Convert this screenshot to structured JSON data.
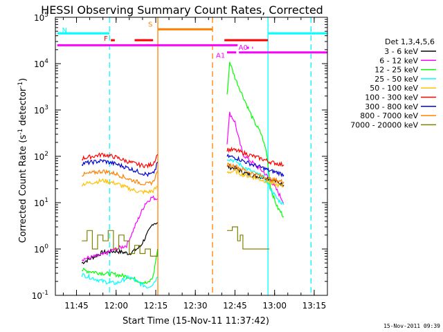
{
  "chart_data": {
    "type": "line",
    "title": "HESSI Observing Summary Count Rates, Corrected",
    "xlabel": "Start Time (15-Nov-11 11:37:42)",
    "ylabel": "Corrected Count Rate (s⁻¹ detector⁻¹)",
    "ylabel_main": "Corrected Count Rate (s",
    "ylabel_sup1": "-1",
    "ylabel_mid": " detector",
    "ylabel_sup2": "-1",
    "ylabel_end": ")",
    "y_scale": "log",
    "xlim": [
      "11:37:42",
      "13:20:00"
    ],
    "ylim": [
      0.1,
      100000
    ],
    "x_ticks": [
      "11:45",
      "12:00",
      "12:15",
      "12:30",
      "12:45",
      "13:00",
      "13:15"
    ],
    "y_ticks": [
      {
        "base": "10",
        "exp": "-1"
      },
      {
        "base": "10",
        "exp": "0"
      },
      {
        "base": "10",
        "exp": "1"
      },
      {
        "base": "10",
        "exp": "2"
      },
      {
        "base": "10",
        "exp": "3"
      },
      {
        "base": "10",
        "exp": "4"
      },
      {
        "base": "10",
        "exp": "5"
      }
    ],
    "legend_title": "Det 1,3,4,5,6",
    "legend_position": "right, outside plot",
    "series": [
      {
        "name": "3 - 6 keV",
        "color": "#000000",
        "segments": [
          {
            "x": [
              "11:47",
              "11:55",
              "12:00",
              "12:05",
              "12:09",
              "12:12",
              "12:14",
              "12:15.7"
            ],
            "y": [
              0.5,
              0.85,
              0.9,
              0.8,
              1.1,
              2.2,
              3.6,
              3.7
            ]
          },
          {
            "x": [
              "12:42",
              "12:45",
              "12:48",
              "12:52",
              "12:56",
              "12:58.5",
              "13:01",
              "13:03.5"
            ],
            "y": [
              60,
              55,
              45,
              38,
              35,
              32,
              28,
              24
            ]
          }
        ]
      },
      {
        "name": "6 - 12 keV",
        "color": "#ff00ff",
        "segments": [
          {
            "x": [
              "11:47",
              "11:55",
              "12:00",
              "12:04",
              "12:08",
              "12:11",
              "12:13.5",
              "12:15.7"
            ],
            "y": [
              0.6,
              0.75,
              1.0,
              1.2,
              4.0,
              9.5,
              13,
              12
            ]
          },
          {
            "x": [
              "12:42",
              "12:43",
              "12:45",
              "12:46",
              "12:47",
              "12:48",
              "12:52",
              "12:56",
              "12:58.5",
              "13:01",
              "13:03.5"
            ],
            "y": [
              200,
              850,
              550,
              300,
              180,
              110,
              70,
              45,
              30,
              18,
              10
            ]
          }
        ]
      },
      {
        "name": "12 - 25 keV",
        "color": "#00ff00",
        "segments": [
          {
            "x": [
              "11:47",
              "11:55",
              "12:00",
              "12:05",
              "12:09",
              "12:12",
              "12:14",
              "12:15.7"
            ],
            "y": [
              0.35,
              0.3,
              0.28,
              0.25,
              0.2,
              0.18,
              0.25,
              1.0
            ]
          },
          {
            "x": [
              "12:42",
              "12:43",
              "12:45",
              "12:48",
              "12:52",
              "12:55",
              "12:57",
              "12:58.5",
              "13:01",
              "13:03.5"
            ],
            "y": [
              2000,
              11000,
              5000,
              2000,
              600,
              300,
              120,
              20,
              8,
              5
            ]
          }
        ]
      },
      {
        "name": "25 - 50 keV",
        "color": "#00ffff",
        "segments": [
          {
            "x": [
              "11:47",
              "11:55",
              "12:00",
              "12:05",
              "12:09",
              "12:12",
              "12:14",
              "12:15.7"
            ],
            "y": [
              0.28,
              0.2,
              0.18,
              0.25,
              0.18,
              0.15,
              0.18,
              0.25
            ]
          },
          {
            "x": [
              "12:42",
              "12:45",
              "12:48",
              "12:52",
              "12:56",
              "12:58.5",
              "13:01",
              "13:03.5"
            ],
            "y": [
              90,
              80,
              60,
              45,
              35,
              20,
              12,
              9
            ]
          }
        ]
      },
      {
        "name": "50 - 100 keV",
        "color": "#ffc000",
        "segments": [
          {
            "x": [
              "11:47",
              "11:55",
              "12:00",
              "12:05",
              "12:09",
              "12:12",
              "12:14",
              "12:15.7"
            ],
            "y": [
              25,
              30,
              26,
              20,
              17,
              17,
              18,
              22
            ]
          },
          {
            "x": [
              "12:42",
              "12:45",
              "12:48",
              "12:52",
              "12:56",
              "12:58.5",
              "13:01",
              "13:03.5"
            ],
            "y": [
              45,
              48,
              40,
              35,
              30,
              27,
              24,
              22
            ]
          }
        ]
      },
      {
        "name": "100 - 300 keV",
        "color": "#ff0000",
        "segments": [
          {
            "x": [
              "11:47",
              "11:55",
              "12:00",
              "12:05",
              "12:09",
              "12:12",
              "12:14",
              "12:15",
              "12:15.7"
            ],
            "y": [
              90,
              110,
              95,
              75,
              65,
              62,
              70,
              90,
              110
            ]
          },
          {
            "x": [
              "12:42",
              "12:45",
              "12:48",
              "12:52",
              "12:56",
              "12:58.5",
              "13:01",
              "13:03.5"
            ],
            "y": [
              140,
              135,
              120,
              100,
              85,
              75,
              70,
              65
            ]
          }
        ]
      },
      {
        "name": "300 - 800 keV",
        "color": "#0000d0",
        "segments": [
          {
            "x": [
              "11:47",
              "11:55",
              "12:00",
              "12:05",
              "12:09",
              "12:12",
              "12:14",
              "12:15",
              "12:15.7"
            ],
            "y": [
              70,
              80,
              68,
              55,
              45,
              40,
              42,
              55,
              75
            ]
          },
          {
            "x": [
              "12:42",
              "12:45",
              "12:48",
              "12:52",
              "12:56",
              "12:58.5",
              "13:01",
              "13:03.5"
            ],
            "y": [
              100,
              95,
              80,
              65,
              55,
              48,
              45,
              40
            ]
          }
        ]
      },
      {
        "name": "800 - 7000 keV",
        "color": "#ff8000",
        "segments": [
          {
            "x": [
              "11:47",
              "11:55",
              "12:00",
              "12:05",
              "12:09",
              "12:12",
              "12:14",
              "12:15",
              "12:15.7"
            ],
            "y": [
              40,
              48,
              42,
              32,
              27,
              25,
              28,
              38,
              48
            ]
          },
          {
            "x": [
              "12:42",
              "12:45",
              "12:48",
              "12:52",
              "12:56",
              "12:58.5",
              "13:01",
              "13:03.5"
            ],
            "y": [
              65,
              62,
              52,
              42,
              36,
              32,
              30,
              28
            ]
          }
        ]
      },
      {
        "name": "7000 - 20000 keV",
        "color": "#808000",
        "segments": [
          {
            "x": [
              "11:47",
              "11:49",
              "11:51",
              "11:53",
              "11:55",
              "11:57",
              "11:59",
              "12:01",
              "12:03",
              "12:05",
              "12:07",
              "12:09",
              "12:11",
              "12:13",
              "12:15.7"
            ],
            "y": [
              1.5,
              2.5,
              1.0,
              2.0,
              1.5,
              2.5,
              1.0,
              2.0,
              1.5,
              0.8,
              1.2,
              0.8,
              1.0,
              0.7,
              1.0
            ]
          },
          {
            "x": [
              "12:42",
              "12:44",
              "12:46",
              "12:47",
              "12:48",
              "12:50",
              "12:52",
              "12:55",
              "12:58"
            ],
            "y": [
              2.5,
              3.0,
              1.5,
              2.0,
              1.0,
              1.0,
              1.0,
              1.0,
              1.0
            ]
          }
        ]
      }
    ],
    "annotations": {
      "vertical_lines": [
        {
          "x": "11:57.5",
          "color": "#00ffff",
          "style": "dashed"
        },
        {
          "x": "12:15.8",
          "color": "#ff8000",
          "style": "solid"
        },
        {
          "x": "12:36.5",
          "color": "#ff8000",
          "style": "dashed"
        },
        {
          "x": "12:57.5",
          "color": "#00ffff",
          "style": "solid"
        },
        {
          "x": "13:13.8",
          "color": "#00ffff",
          "style": "dashed"
        }
      ],
      "flag_bars": [
        {
          "label": "N",
          "color": "#00ffff",
          "y": 45000,
          "segments": [
            [
              "11:37.7",
              "11:57.5"
            ],
            [
              "12:57.5",
              "13:20"
            ]
          ]
        },
        {
          "label": "F",
          "color": "#ff0000",
          "y": 32000,
          "segments": [
            [
              "11:58",
              "11:59.5"
            ],
            [
              "12:07",
              "12:14"
            ]
          ]
        },
        {
          "label": "S",
          "color": "#ff8000",
          "y": 55000,
          "segments": [
            [
              "12:15.8",
              "12:36.5"
            ]
          ]
        },
        {
          "label": "A0",
          "color": "#ff00ff",
          "y": 22000,
          "segments": [
            [
              "12:49.5",
              "12:50.3"
            ],
            [
              "12:51.5",
              "12:51.8"
            ]
          ]
        },
        {
          "label": "A1",
          "color": "#ff00ff",
          "y": 17500,
          "segments": [
            [
              "12:42",
              "12:45.5"
            ],
            [
              "12:46.5",
              "13:20"
            ]
          ]
        },
        {
          "label": "",
          "color": "#ff00ff",
          "y": 25000,
          "segments": [
            [
              "11:37.7",
              "12:46"
            ]
          ]
        },
        {
          "label": "",
          "color": "#ff0000",
          "y": 32000,
          "segments": [
            [
              "12:41",
              "12:57.5"
            ]
          ]
        }
      ]
    }
  },
  "footer": {
    "timestamp": "15-Nov-2011 09:39"
  }
}
